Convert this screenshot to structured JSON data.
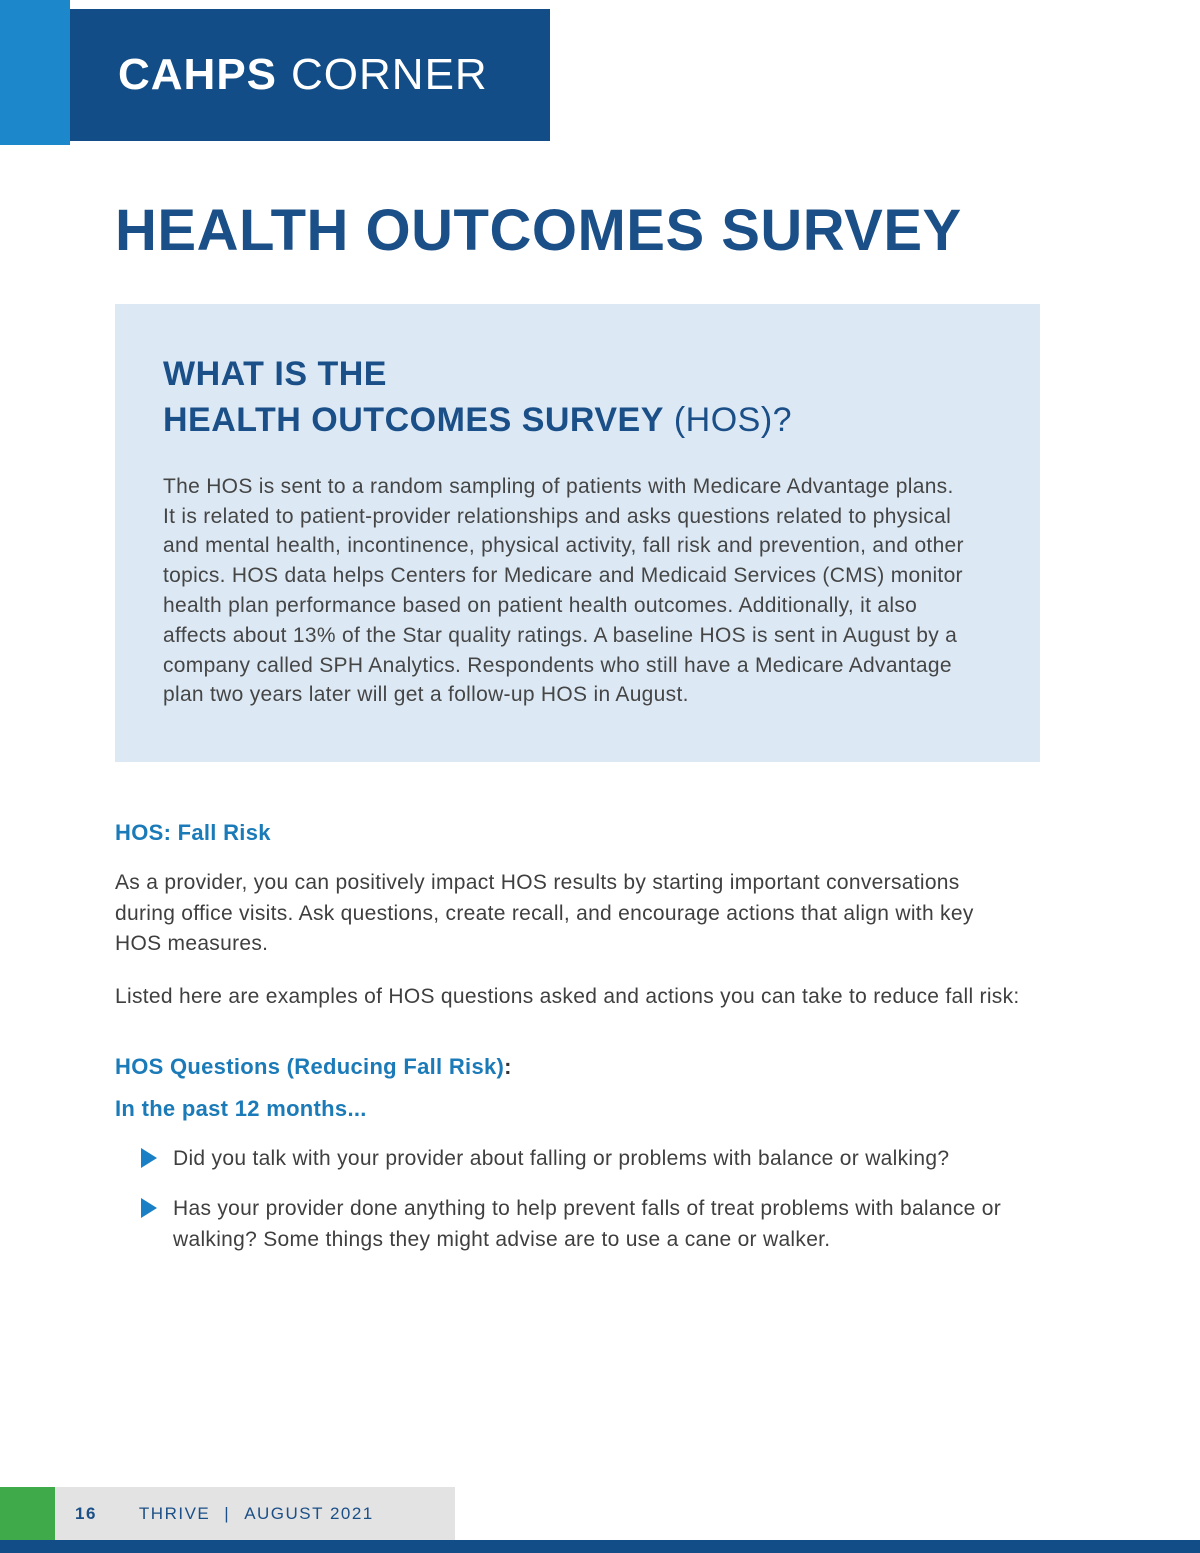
{
  "header": {
    "brand_bold": "CAHPS",
    "brand_light": "CORNER"
  },
  "page_title": "HEALTH OUTCOMES SURVEY",
  "info_box": {
    "heading_line1": "WHAT IS THE",
    "heading_line2_bold": "HEALTH OUTCOMES SURVEY",
    "heading_line2_normal": " (HOS)?",
    "body": "The HOS is sent to a random sampling of patients with Medicare Advantage plans. It is related to patient-provider relationships and asks questions related to physical and mental health, incontinence, physical activity, fall risk and prevention, and other topics. HOS data helps Centers for Medicare and Medicaid Services (CMS) monitor health plan performance based on patient health outcomes. Additionally, it also affects about 13% of the Star quality ratings. A baseline HOS is sent in August by a company called SPH Analytics. Respondents who still have a Medicare Advantage plan two years later will get a follow-up HOS in August."
  },
  "sections": {
    "fall_risk_heading": "HOS: Fall Risk",
    "para1": "As a provider, you can positively impact HOS results by starting important conversations during office visits. Ask questions, create recall, and encourage actions that align with key HOS measures.",
    "para2": "Listed here are examples of HOS questions asked and actions you can take to reduce fall risk:",
    "questions_heading": "HOS Questions (Reducing Fall Risk)",
    "questions_heading_colon": ":",
    "timeframe_heading": "In the past 12 months...",
    "bullets": [
      "Did you talk with your provider about falling or problems with balance or walking?",
      "Has your provider done anything to help prevent falls of treat problems with balance or walking? Some things they might advise are to use a cane or walker."
    ]
  },
  "footer": {
    "page_number": "16",
    "publication": "THRIVE",
    "separator": "|",
    "date": "AUGUST 2021"
  },
  "colors": {
    "bright_blue": "#1d87cc",
    "navy": "#124d87",
    "title_blue": "#1b4f87",
    "section_heading_blue": "#1b7ab8",
    "info_box_bg": "#dce9f5",
    "body_text": "#3f3f3f",
    "green": "#3faa4a",
    "footer_gray": "#e3e3e3"
  }
}
